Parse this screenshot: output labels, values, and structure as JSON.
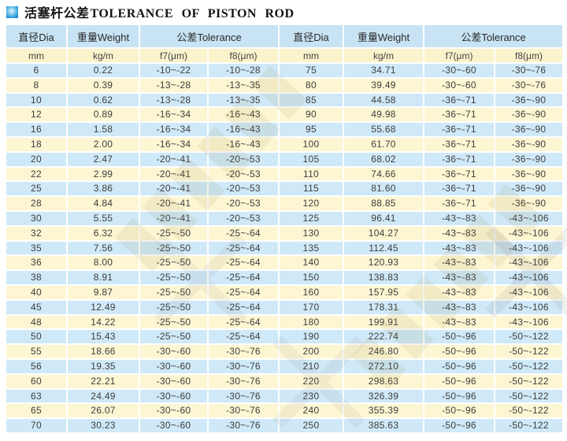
{
  "title": {
    "zh": "活塞杆公差",
    "en": "TOLERANCE OF PISTON ROD"
  },
  "table": {
    "header": {
      "dia": "直径Dia",
      "weight": "重量Weight",
      "tolerance": "公差Tolerance"
    },
    "units": {
      "mm": "mm",
      "kgm": "kg/m",
      "f7": "f7(μm)",
      "f8": "f8(μm)"
    },
    "rows_left": [
      [
        "6",
        "0.22",
        "-10~-22",
        "-10~-28"
      ],
      [
        "8",
        "0.39",
        "-13~-28",
        "-13~-35"
      ],
      [
        "10",
        "0.62",
        "-13~-28",
        "-13~-35"
      ],
      [
        "12",
        "0.89",
        "-16~-34",
        "-16~-43"
      ],
      [
        "16",
        "1.58",
        "-16~-34",
        "-16~-43"
      ],
      [
        "18",
        "2.00",
        "-16~-34",
        "-16~-43"
      ],
      [
        "20",
        "2.47",
        "-20~-41",
        "-20~-53"
      ],
      [
        "22",
        "2.99",
        "-20~-41",
        "-20~-53"
      ],
      [
        "25",
        "3.86",
        "-20~-41",
        "-20~-53"
      ],
      [
        "28",
        "4.84",
        "-20~-41",
        "-20~-53"
      ],
      [
        "30",
        "5.55",
        "-20~-41",
        "-20~-53"
      ],
      [
        "32",
        "6.32",
        "-25~-50",
        "-25~-64"
      ],
      [
        "35",
        "7.56",
        "-25~-50",
        "-25~-64"
      ],
      [
        "36",
        "8.00",
        "-25~-50",
        "-25~-64"
      ],
      [
        "38",
        "8.91",
        "-25~-50",
        "-25~-64"
      ],
      [
        "40",
        "9.87",
        "-25~-50",
        "-25~-64"
      ],
      [
        "45",
        "12.49",
        "-25~-50",
        "-25~-64"
      ],
      [
        "48",
        "14.22",
        "-25~-50",
        "-25~-64"
      ],
      [
        "50",
        "15.43",
        "-25~-50",
        "-25~-64"
      ],
      [
        "55",
        "18.66",
        "-30~-60",
        "-30~-76"
      ],
      [
        "56",
        "19.35",
        "-30~-60",
        "-30~-76"
      ],
      [
        "60",
        "22.21",
        "-30~-60",
        "-30~-76"
      ],
      [
        "63",
        "24.49",
        "-30~-60",
        "-30~-76"
      ],
      [
        "65",
        "26.07",
        "-30~-60",
        "-30~-76"
      ],
      [
        "70",
        "30.23",
        "-30~-60",
        "-30~-76"
      ]
    ],
    "rows_right": [
      [
        "75",
        "34.71",
        "-30~-60",
        "-30~-76"
      ],
      [
        "80",
        "39.49",
        "-30~-60",
        "-30~-76"
      ],
      [
        "85",
        "44.58",
        "-36~-71",
        "-36~-90"
      ],
      [
        "90",
        "49.98",
        "-36~-71",
        "-36~-90"
      ],
      [
        "95",
        "55.68",
        "-36~-71",
        "-36~-90"
      ],
      [
        "100",
        "61.70",
        "-36~-71",
        "-36~-90"
      ],
      [
        "105",
        "68.02",
        "-36~-71",
        "-36~-90"
      ],
      [
        "110",
        "74.66",
        "-36~-71",
        "-36~-90"
      ],
      [
        "115",
        "81.60",
        "-36~-71",
        "-36~-90"
      ],
      [
        "120",
        "88.85",
        "-36~-71",
        "-36~-90"
      ],
      [
        "125",
        "96.41",
        "-43~-83",
        "-43~-106"
      ],
      [
        "130",
        "104.27",
        "-43~-83",
        "-43~-106"
      ],
      [
        "135",
        "112.45",
        "-43~-83",
        "-43~-106"
      ],
      [
        "140",
        "120.93",
        "-43~-83",
        "-43~-106"
      ],
      [
        "150",
        "138.83",
        "-43~-83",
        "-43~-106"
      ],
      [
        "160",
        "157.95",
        "-43~-83",
        "-43~-106"
      ],
      [
        "170",
        "178.31",
        "-43~-83",
        "-43~-106"
      ],
      [
        "180",
        "199.91",
        "-43~-83",
        "-43~-106"
      ],
      [
        "190",
        "222.74",
        "-50~-96",
        "-50~-122"
      ],
      [
        "200",
        "246.80",
        "-50~-96",
        "-50~-122"
      ],
      [
        "210",
        "272.10",
        "-50~-96",
        "-50~-122"
      ],
      [
        "220",
        "298.63",
        "-50~-96",
        "-50~-122"
      ],
      [
        "230",
        "326.39",
        "-50~-96",
        "-50~-122"
      ],
      [
        "240",
        "355.39",
        "-50~-96",
        "-50~-122"
      ],
      [
        "250",
        "385.63",
        "-50~-96",
        "-50~-122"
      ]
    ]
  },
  "colors": {
    "header_blue": "#c7e3f4",
    "row_blue": "#cfe9f8",
    "row_yellow": "#fdf6d2",
    "unit_yellow": "#faf3cb",
    "accent_blue": "#1286c9",
    "text_dark": "#3d3d3d"
  }
}
